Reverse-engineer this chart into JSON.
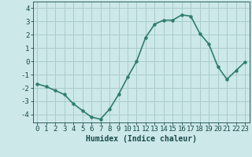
{
  "x": [
    0,
    1,
    2,
    3,
    4,
    5,
    6,
    7,
    8,
    9,
    10,
    11,
    12,
    13,
    14,
    15,
    16,
    17,
    18,
    19,
    20,
    21,
    22,
    23
  ],
  "y": [
    -1.7,
    -1.9,
    -2.2,
    -2.5,
    -3.2,
    -3.7,
    -4.2,
    -4.35,
    -3.6,
    -2.5,
    -1.2,
    0.0,
    1.8,
    2.8,
    3.1,
    3.1,
    3.5,
    3.4,
    2.1,
    1.3,
    -0.4,
    -1.35,
    -0.7,
    -0.05
  ],
  "line_color": "#2e7d6e",
  "marker_color": "#2e7d6e",
  "bg_color": "#cce8e8",
  "grid_color": "#aacccc",
  "tick_color": "#1a4a4a",
  "label_color": "#1a4a4a",
  "xlabel": "Humidex (Indice chaleur)",
  "xlim_lo": -0.5,
  "xlim_hi": 23.5,
  "ylim_lo": -4.6,
  "ylim_hi": 4.5,
  "yticks": [
    -4,
    -3,
    -2,
    -1,
    0,
    1,
    2,
    3,
    4
  ],
  "xticks": [
    0,
    1,
    2,
    3,
    4,
    5,
    6,
    7,
    8,
    9,
    10,
    11,
    12,
    13,
    14,
    15,
    16,
    17,
    18,
    19,
    20,
    21,
    22,
    23
  ],
  "xlabel_fontsize": 7,
  "tick_fontsize": 6.5,
  "linewidth": 1.2,
  "markersize": 2.8
}
